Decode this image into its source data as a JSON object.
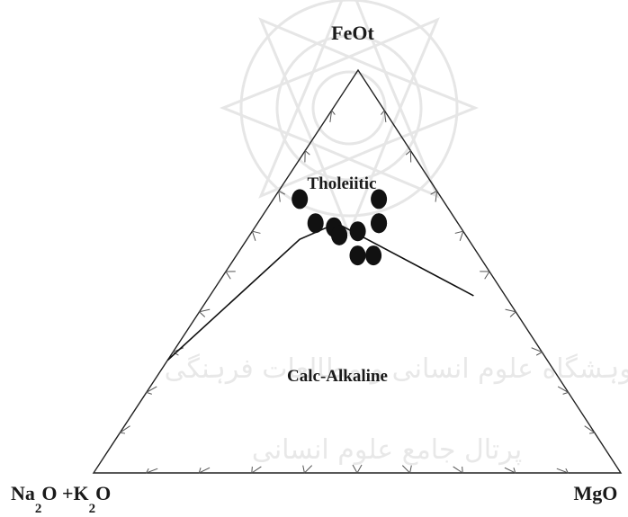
{
  "chart_data": {
    "type": "scatter",
    "diagram": "ternary",
    "vertices": {
      "top": "FeOt",
      "left": [
        "Na",
        "2",
        "O +K",
        "2",
        "O"
      ],
      "right": "MgO"
    },
    "fields": [
      {
        "label": "Tholeiitic"
      },
      {
        "label": "Calc-Alkaline"
      }
    ],
    "boundary_line": [
      {
        "A": 0.72,
        "F": 0.28,
        "M": 0.0
      },
      {
        "A": 0.32,
        "F": 0.58,
        "M": 0.1
      },
      {
        "A": 0.23,
        "F": 0.62,
        "M": 0.15
      },
      {
        "A": 0.06,
        "F": 0.44,
        "M": 0.5
      }
    ],
    "points": [
      {
        "A": 0.12,
        "F": 0.68,
        "M": 0.2
      },
      {
        "A": 0.27,
        "F": 0.68,
        "M": 0.05
      },
      {
        "A": 0.27,
        "F": 0.62,
        "M": 0.11
      },
      {
        "A": 0.15,
        "F": 0.62,
        "M": 0.23
      },
      {
        "A": 0.15,
        "F": 0.62,
        "M": 0.23
      },
      {
        "A": 0.24,
        "F": 0.61,
        "M": 0.15
      },
      {
        "A": 0.24,
        "F": 0.59,
        "M": 0.17
      },
      {
        "A": 0.24,
        "F": 0.59,
        "M": 0.17
      },
      {
        "A": 0.2,
        "F": 0.6,
        "M": 0.2
      },
      {
        "A": 0.23,
        "F": 0.54,
        "M": 0.23
      },
      {
        "A": 0.2,
        "F": 0.54,
        "M": 0.26
      }
    ],
    "tick_divisions": 10,
    "colors": {
      "points": "#111111",
      "lines": "#222222"
    }
  },
  "watermark": {
    "line1": "ژوہشگاه علوم انسانی و مطالعات فرہنگی",
    "line2": "پرتال جامع علوم انسانی"
  }
}
